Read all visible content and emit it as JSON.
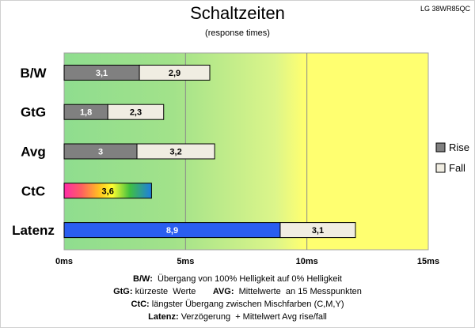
{
  "title": "Schaltzeiten",
  "subtitle": "(response times)",
  "model": "LG 38WR85QC",
  "chart_data": {
    "type": "bar",
    "orientation": "horizontal",
    "stacked": true,
    "categories": [
      "B/W",
      "GtG",
      "Avg",
      "CtC",
      "Latenz"
    ],
    "series": [
      {
        "name": "Rise",
        "values": [
          3.1,
          1.8,
          3.0,
          3.6,
          8.9
        ],
        "labels": [
          "3,1",
          "1,8",
          "3",
          "3,6",
          "8,9"
        ]
      },
      {
        "name": "Fall",
        "values": [
          2.9,
          2.3,
          3.2,
          null,
          3.1
        ],
        "labels": [
          "2,9",
          "2,3",
          "3,2",
          "",
          "3,1"
        ]
      }
    ],
    "xlim": [
      0,
      15
    ],
    "xticks": [
      0,
      5,
      10,
      15
    ],
    "xtick_labels": [
      "0ms",
      "5ms",
      "10ms",
      "15ms"
    ],
    "legend": {
      "position": "right",
      "entries": [
        "Rise",
        "Fall"
      ]
    },
    "grid": true,
    "colors": {
      "rise": "#808080",
      "fall": "#f0ede2",
      "latenz_rise": "#2a5ef0",
      "bg_green": "#8fdd8f",
      "bg_yellow": "#ffff70"
    }
  },
  "footer": {
    "line1_key": "B/W:",
    "line1_text": "  Übergang von 100% Helligkeit auf 0% Helligkeit",
    "line2_key_a": "GtG:",
    "line2_text_a": " kürzeste  Werte       ",
    "line2_key_b": "AVG:",
    "line2_text_b": "  Mittelwerte  an 15 Messpunkten",
    "line3_key": "CtC:",
    "line3_text": " längster Übergang zwischen Mischfarben (C,M,Y)",
    "line4_key": "Latenz:",
    "line4_text": " Verzögerung  + Mittelwert Avg rise/fall"
  }
}
